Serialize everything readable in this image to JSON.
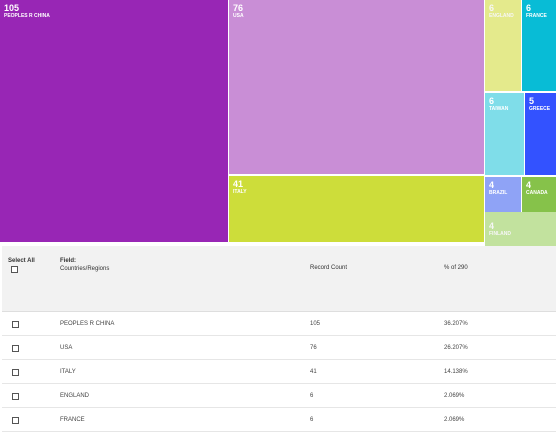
{
  "treemap": {
    "tiles": [
      {
        "count": "105",
        "name": "PEOPLES R CHINA",
        "color": "#9826b5"
      },
      {
        "count": "76",
        "name": "USA",
        "color": "#c98ed6"
      },
      {
        "count": "41",
        "name": "ITALY",
        "color": "#cddd3a"
      },
      {
        "count": "6",
        "name": "ENGLAND",
        "color": "#e4ea8c"
      },
      {
        "count": "6",
        "name": "FRANCE",
        "color": "#08bcd6"
      },
      {
        "count": "6",
        "name": "TAIWAN",
        "color": "#7fdde9"
      },
      {
        "count": "5",
        "name": "GREECE",
        "color": "#3352ff"
      },
      {
        "count": "4",
        "name": "BRAZIL",
        "color": "#8fa3f6"
      },
      {
        "count": "4",
        "name": "CANADA",
        "color": "#86c24a"
      },
      {
        "count": "4",
        "name": "FINLAND",
        "color": "#c2e29e"
      }
    ]
  },
  "table": {
    "select_all_label": "Select All",
    "field_label": "Field:",
    "field_value": "Countries/Regions",
    "record_count_label": "Record Count",
    "percent_label": "% of 290",
    "rows": [
      {
        "name": "PEOPLES R CHINA",
        "count": "105",
        "percent": "36.207%"
      },
      {
        "name": "USA",
        "count": "76",
        "percent": "26.207%"
      },
      {
        "name": "ITALY",
        "count": "41",
        "percent": "14.138%"
      },
      {
        "name": "ENGLAND",
        "count": "6",
        "percent": "2.069%"
      },
      {
        "name": "FRANCE",
        "count": "6",
        "percent": "2.069%"
      }
    ]
  }
}
